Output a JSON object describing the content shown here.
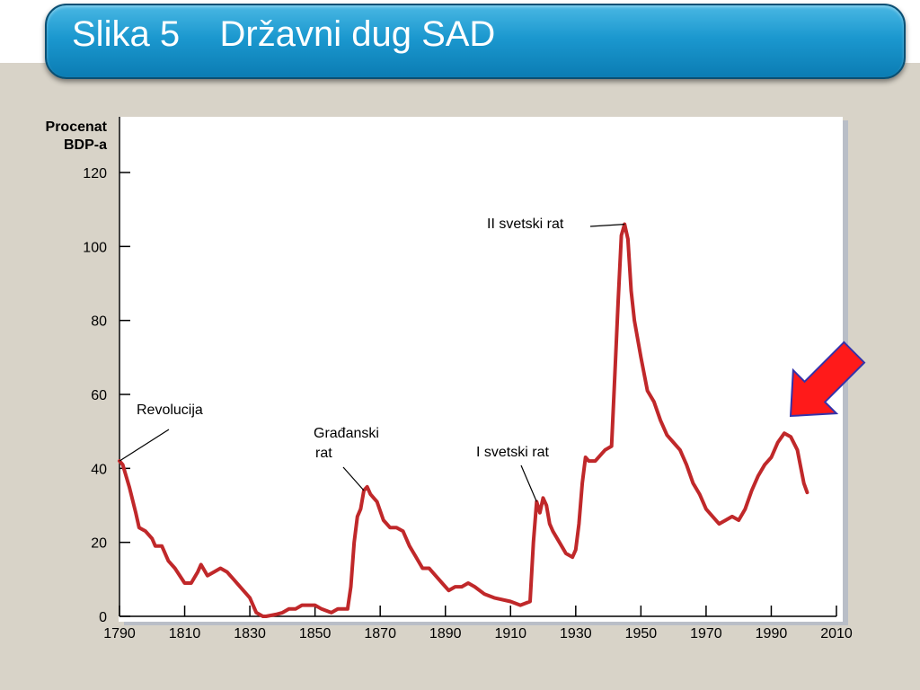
{
  "slide": {
    "title": "Slika 5    Državni dug SAD"
  },
  "colors": {
    "line": "#c0282a",
    "arrow_fill": "#ff1a1a",
    "arrow_stroke": "#3333aa",
    "title_bar": "#1b98cf"
  },
  "chart_data": {
    "type": "line",
    "title": "",
    "xlabel": "",
    "ylabel": "Procenat BDP-a",
    "ylabel_lines": [
      "Procenat",
      "BDP-a"
    ],
    "xlim": [
      1790,
      2010
    ],
    "ylim": [
      0,
      120
    ],
    "xticks": [
      1790,
      1810,
      1830,
      1850,
      1870,
      1890,
      1910,
      1930,
      1950,
      1970,
      1990,
      2010
    ],
    "yticks": [
      0,
      20,
      40,
      60,
      80,
      100,
      120
    ],
    "grid": false,
    "series": [
      {
        "name": "",
        "x": [
          1790,
          1791,
          1793,
          1795,
          1796,
          1798,
          1800,
          1801,
          1803,
          1805,
          1807,
          1810,
          1812,
          1814,
          1815,
          1817,
          1819,
          1821,
          1823,
          1825,
          1827,
          1830,
          1832,
          1834,
          1835,
          1838,
          1840,
          1842,
          1844,
          1846,
          1848,
          1850,
          1852,
          1855,
          1857,
          1860,
          1861,
          1862,
          1863,
          1864,
          1865,
          1866,
          1867,
          1869,
          1871,
          1873,
          1875,
          1877,
          1879,
          1881,
          1883,
          1885,
          1887,
          1889,
          1891,
          1893,
          1895,
          1897,
          1899,
          1902,
          1905,
          1910,
          1913,
          1916,
          1917,
          1918,
          1919,
          1920,
          1921,
          1922,
          1923,
          1925,
          1927,
          1929,
          1930,
          1931,
          1932,
          1933,
          1934,
          1936,
          1938,
          1939,
          1941,
          1942,
          1943,
          1944,
          1945,
          1946,
          1947,
          1948,
          1950,
          1952,
          1954,
          1956,
          1958,
          1960,
          1962,
          1964,
          1966,
          1968,
          1970,
          1972,
          1974,
          1976,
          1978,
          1980,
          1982,
          1984,
          1986,
          1988,
          1990,
          1992,
          1994,
          1996,
          1998,
          2000,
          2001
        ],
        "values": [
          42,
          41,
          35,
          28,
          24,
          23,
          21,
          19,
          19,
          15,
          13,
          9,
          9,
          12,
          14,
          11,
          12,
          13,
          12,
          10,
          8,
          5,
          1,
          0,
          0,
          0.5,
          1,
          2,
          2,
          3,
          3,
          3,
          2,
          1,
          2,
          2,
          8,
          20,
          27,
          29,
          34,
          35,
          33,
          31,
          26,
          24,
          24,
          23,
          19,
          16,
          13,
          13,
          11,
          9,
          7,
          8,
          8,
          9,
          8,
          6,
          5,
          4,
          3,
          4,
          20,
          31,
          28,
          32,
          30,
          25,
          23,
          20,
          17,
          16,
          18,
          25,
          36,
          43,
          42,
          42,
          44,
          45,
          46,
          65,
          85,
          103,
          106,
          102,
          88,
          80,
          70,
          61,
          58,
          53,
          49,
          47,
          45,
          41,
          36,
          33,
          29,
          27,
          25,
          26,
          27,
          26,
          29,
          34,
          38,
          41,
          43,
          47,
          49.5,
          48.5,
          45,
          36,
          33.5
        ]
      }
    ],
    "annotations": [
      {
        "text": "Revolucija",
        "year": 1790
      },
      {
        "text": "Građanski\nrat",
        "year": 1865
      },
      {
        "text": "I svetski rat",
        "year": 1918
      },
      {
        "text": "II svetski rat",
        "year": 1945
      }
    ]
  },
  "decorations": {
    "arrow_icon": "red-pointer-arrow"
  }
}
